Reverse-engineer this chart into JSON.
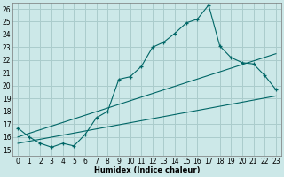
{
  "xlabel": "Humidex (Indice chaleur)",
  "bg_color": "#cce8e8",
  "grid_color": "#aacccc",
  "line_color": "#006666",
  "xlim": [
    -0.5,
    23.5
  ],
  "ylim": [
    14.5,
    26.5
  ],
  "xticks": [
    0,
    1,
    2,
    3,
    4,
    5,
    6,
    7,
    8,
    9,
    10,
    11,
    12,
    13,
    14,
    15,
    16,
    17,
    18,
    19,
    20,
    21,
    22,
    23
  ],
  "yticks": [
    15,
    16,
    17,
    18,
    19,
    20,
    21,
    22,
    23,
    24,
    25,
    26
  ],
  "main_x": [
    0,
    1,
    2,
    3,
    4,
    5,
    6,
    7,
    8,
    9,
    10,
    11,
    12,
    13,
    14,
    15,
    16,
    17,
    18,
    19,
    20,
    21,
    22,
    23
  ],
  "main_y": [
    16.7,
    16.0,
    15.5,
    15.2,
    15.5,
    15.3,
    16.2,
    17.5,
    18.0,
    20.5,
    20.7,
    21.5,
    23.0,
    23.4,
    24.1,
    24.9,
    25.2,
    26.3,
    23.1,
    22.2,
    21.8,
    21.7,
    20.8,
    19.7
  ],
  "line2_x": [
    0,
    23
  ],
  "line2_y": [
    15.5,
    19.2
  ],
  "line3_x": [
    0,
    23
  ],
  "line3_y": [
    16.0,
    22.5
  ],
  "xlabel_fontsize": 6.0,
  "tick_fontsize": 5.5
}
